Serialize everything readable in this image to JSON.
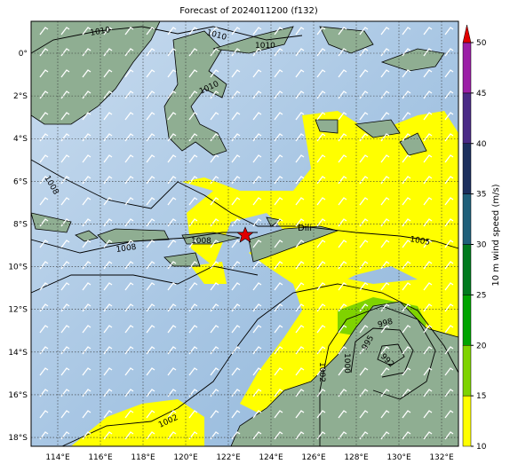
{
  "title": "Forecast of 2024011200 (f132)",
  "lon_ticks": [
    {
      "value": 114,
      "label": "114°E"
    },
    {
      "value": 116,
      "label": "116°E"
    },
    {
      "value": 118,
      "label": "118°E"
    },
    {
      "value": 120,
      "label": "120°E"
    },
    {
      "value": 122,
      "label": "122°E"
    },
    {
      "value": 124,
      "label": "124°E"
    },
    {
      "value": 126,
      "label": "126°E"
    },
    {
      "value": 128,
      "label": "128°E"
    },
    {
      "value": 130,
      "label": "130°E"
    },
    {
      "value": 132,
      "label": "132°E"
    }
  ],
  "lat_ticks": [
    {
      "value": 0,
      "label": "0°"
    },
    {
      "value": -2,
      "label": "2°S"
    },
    {
      "value": -4,
      "label": "4°S"
    },
    {
      "value": -6,
      "label": "6°S"
    },
    {
      "value": -8,
      "label": "8°S"
    },
    {
      "value": -10,
      "label": "10°S"
    },
    {
      "value": -12,
      "label": "12°S"
    },
    {
      "value": -14,
      "label": "14°S"
    },
    {
      "value": -16,
      "label": "16°S"
    },
    {
      "value": -18,
      "label": "18°S"
    }
  ],
  "contour_labels": [
    1010,
    1010,
    1010,
    1010,
    1008,
    1008,
    1008,
    1005,
    998,
    995,
    992,
    1002,
    1000,
    1002
  ],
  "city": "Dili",
  "colorbar": {
    "label": "10 m wind speed (m/s)",
    "ticks": [
      10,
      15,
      20,
      25,
      30,
      35,
      40,
      45,
      50
    ],
    "colors": [
      "#ffff00",
      "#7fd300",
      "#00a400",
      "#007a1e",
      "#1f5f7a",
      "#1c2f5e",
      "#4a2a86",
      "#9b1fa6"
    ],
    "extend_color": "#e00000"
  }
}
